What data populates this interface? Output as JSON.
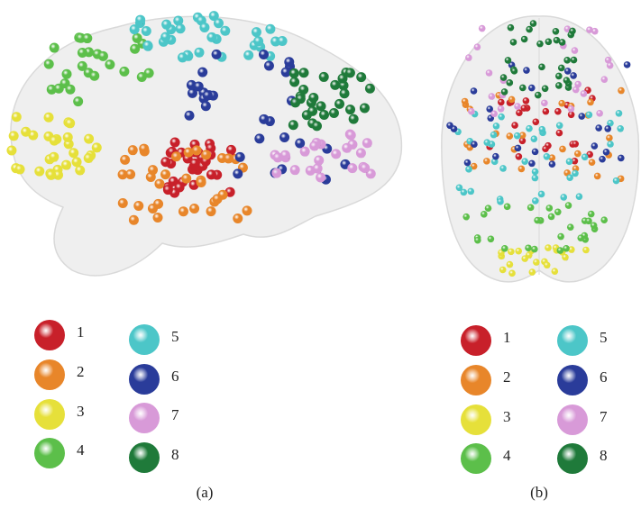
{
  "panels": [
    {
      "label": "(a)",
      "legend": [
        {
          "label": "1",
          "color": "#c8202a"
        },
        {
          "label": "2",
          "color": "#e8862a"
        },
        {
          "label": "3",
          "color": "#e6e03a"
        },
        {
          "label": "4",
          "color": "#5cbf4a"
        },
        {
          "label": "5",
          "color": "#4cc6c8"
        },
        {
          "label": "6",
          "color": "#2a3c9a"
        },
        {
          "label": "7",
          "color": "#d89ad8"
        },
        {
          "label": "8",
          "color": "#1f7a3a"
        }
      ]
    },
    {
      "label": "(b)",
      "legend": [
        {
          "label": "1",
          "color": "#c8202a"
        },
        {
          "label": "2",
          "color": "#e8862a"
        },
        {
          "label": "3",
          "color": "#e6e03a"
        },
        {
          "label": "4",
          "color": "#5cbf4a"
        },
        {
          "label": "5",
          "color": "#4cc6c8"
        },
        {
          "label": "6",
          "color": "#2a3c9a"
        },
        {
          "label": "7",
          "color": "#d89ad8"
        },
        {
          "label": "8",
          "color": "#1f7a3a"
        }
      ]
    }
  ]
}
